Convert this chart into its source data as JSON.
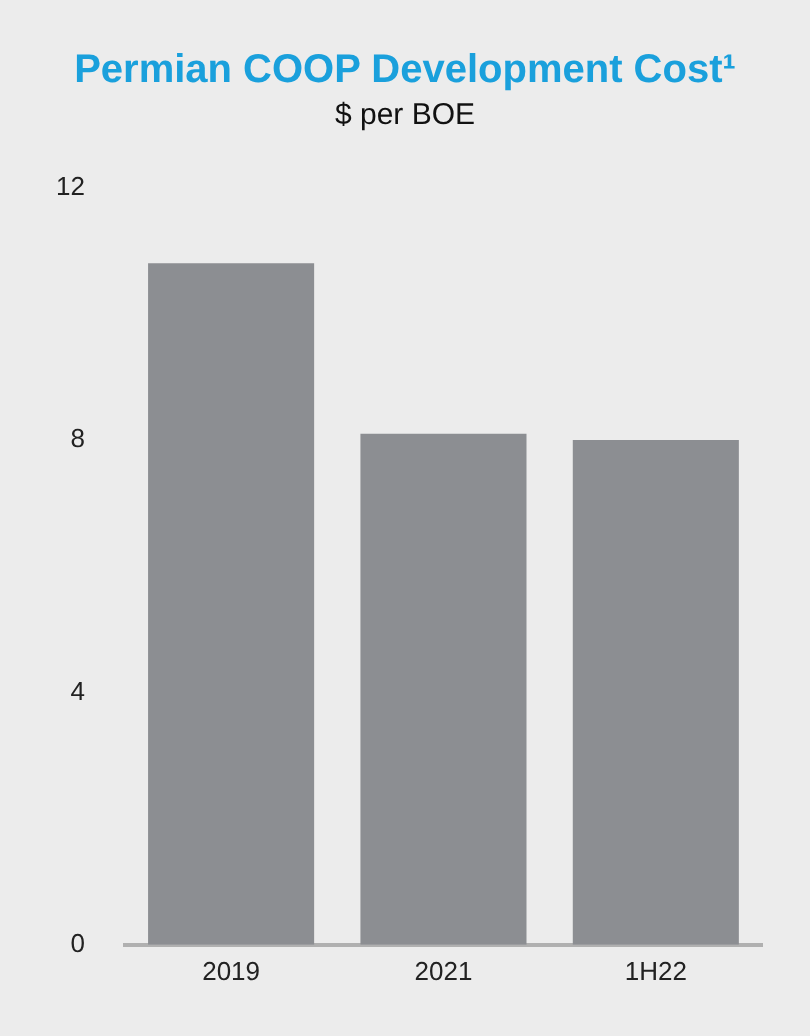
{
  "chart_data": {
    "type": "bar",
    "title": "Permian COOP Development Cost¹",
    "subtitle": "$ per BOE",
    "categories": [
      "2019",
      "2021",
      "1H22"
    ],
    "values": [
      10.8,
      8.1,
      8.0
    ],
    "color": "#8c8e92",
    "ylim": [
      0,
      12
    ],
    "yticks": [
      0,
      4,
      8,
      12
    ],
    "grid": false
  }
}
